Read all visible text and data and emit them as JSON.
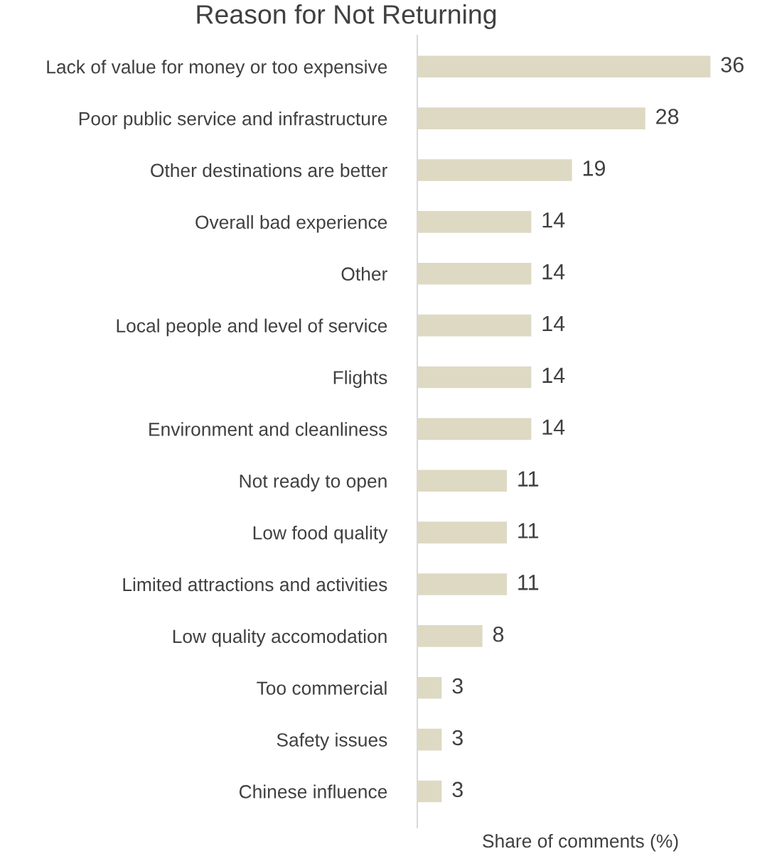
{
  "chart_data": {
    "type": "bar",
    "orientation": "horizontal",
    "title": "Reason for Not Returning",
    "xlabel": "Share of comments (%)",
    "categories": [
      "Lack of value for money or too expensive",
      "Poor public service and infrastructure",
      "Other destinations are better",
      "Overall bad experience",
      "Other",
      "Local people and level of service",
      "Flights",
      "Environment and cleanliness",
      "Not ready to open",
      "Low food quality",
      "Limited attractions and activities",
      "Low quality accomodation",
      "Too commercial",
      "Safety issues",
      "Chinese influence"
    ],
    "values": [
      36,
      28,
      19,
      14,
      14,
      14,
      14,
      14,
      11,
      11,
      11,
      8,
      3,
      3,
      3
    ],
    "color": "#ded9c3",
    "data_labels": true,
    "grid": false,
    "legend": false,
    "tick_labels": "y"
  }
}
